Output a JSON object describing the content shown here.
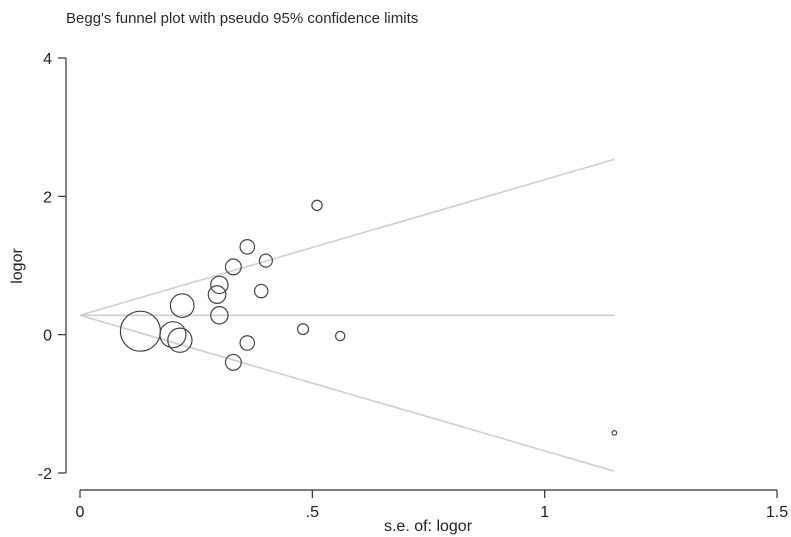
{
  "chart_data": {
    "type": "scatter",
    "title": "Begg's funnel plot with pseudo 95% confidence limits",
    "xlabel": "s.e. of: logor",
    "ylabel": "logor",
    "xlim": [
      0,
      1.5
    ],
    "ylim": [
      -2,
      4
    ],
    "xticks": [
      0,
      0.5,
      1,
      1.5
    ],
    "xtick_labels": [
      "0",
      ".5",
      "1",
      "1.5"
    ],
    "yticks": [
      -2,
      0,
      2,
      4
    ],
    "ytick_labels": [
      "-2",
      "0",
      "2",
      "4"
    ],
    "grid": false,
    "pooled_estimate": 0.28,
    "confidence_limit_se_max": 1.15,
    "marker": "hollow circle sized by weight (1/s.e.)",
    "points": [
      {
        "x": 0.13,
        "y": 0.05
      },
      {
        "x": 0.2,
        "y": 0.0
      },
      {
        "x": 0.215,
        "y": -0.08
      },
      {
        "x": 0.22,
        "y": 0.42
      },
      {
        "x": 0.295,
        "y": 0.58
      },
      {
        "x": 0.3,
        "y": 0.72
      },
      {
        "x": 0.3,
        "y": 0.28
      },
      {
        "x": 0.33,
        "y": 0.98
      },
      {
        "x": 0.33,
        "y": -0.4
      },
      {
        "x": 0.36,
        "y": 1.27
      },
      {
        "x": 0.36,
        "y": -0.12
      },
      {
        "x": 0.39,
        "y": 0.63
      },
      {
        "x": 0.4,
        "y": 1.07
      },
      {
        "x": 0.48,
        "y": 0.08
      },
      {
        "x": 0.51,
        "y": 1.87
      },
      {
        "x": 0.56,
        "y": -0.02
      },
      {
        "x": 1.15,
        "y": -1.42
      }
    ]
  }
}
